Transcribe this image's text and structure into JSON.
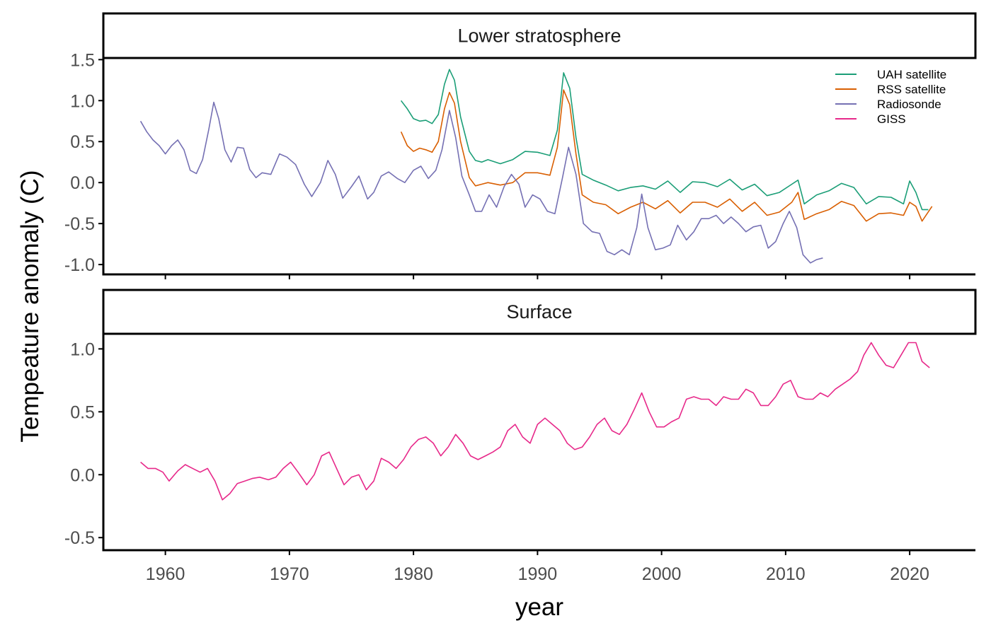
{
  "chart_data": {
    "type": "line",
    "xlabel": "year",
    "ylabel": "Tempeature anomaly (C)",
    "x_ticks": [
      1960,
      1970,
      1980,
      1990,
      2000,
      2010,
      2020
    ],
    "xlim": [
      1955,
      2025.3
    ],
    "legend_position": "top-right",
    "colors": {
      "UAH satellite": "#1b9e77",
      "RSS satellite": "#d95f02",
      "Radiosonde": "#7570b3",
      "GISS": "#e7298a"
    },
    "panels": [
      {
        "strip_label": "Lower stratosphere",
        "ylim": [
          -1.12,
          1.52
        ],
        "y_ticks": [
          1.5,
          1.0,
          0.5,
          0.0,
          -0.5,
          -1.0
        ],
        "y_tick_labels": [
          "1.5",
          "1.0",
          "0.5",
          "0.0",
          "-0.5",
          "-1.0"
        ],
        "legend": [
          "UAH satellite",
          "RSS satellite",
          "Radiosonde",
          "GISS"
        ],
        "series": [
          {
            "name": "UAH satellite",
            "x": [
              1979.0,
              1979.5,
              1980.0,
              1980.5,
              1981.0,
              1981.5,
              1982.0,
              1982.5,
              1982.9,
              1983.3,
              1983.8,
              1984.5,
              1985.0,
              1985.5,
              1986.0,
              1987.0,
              1988.0,
              1989.0,
              1990.0,
              1991.0,
              1991.6,
              1992.1,
              1992.6,
              1993.1,
              1993.6,
              1994.5,
              1995.5,
              1996.5,
              1997.5,
              1998.5,
              1999.5,
              2000.5,
              2001.5,
              2002.5,
              2003.5,
              2004.5,
              2005.5,
              2006.5,
              2007.5,
              2008.5,
              2009.5,
              2010.5,
              2011.0,
              2011.5,
              2012.5,
              2013.5,
              2014.5,
              2015.5,
              2016.5,
              2017.5,
              2018.5,
              2019.5,
              2020.0,
              2020.5,
              2021.0,
              2021.5
            ],
            "y": [
              1.0,
              0.9,
              0.78,
              0.75,
              0.76,
              0.72,
              0.83,
              1.2,
              1.38,
              1.25,
              0.8,
              0.38,
              0.27,
              0.25,
              0.28,
              0.23,
              0.28,
              0.38,
              0.37,
              0.33,
              0.64,
              1.34,
              1.15,
              0.55,
              0.1,
              0.03,
              -0.03,
              -0.1,
              -0.06,
              -0.04,
              -0.08,
              0.02,
              -0.12,
              0.01,
              0.0,
              -0.05,
              0.04,
              -0.09,
              -0.02,
              -0.16,
              -0.12,
              -0.02,
              0.03,
              -0.26,
              -0.15,
              -0.1,
              -0.01,
              -0.06,
              -0.26,
              -0.17,
              -0.18,
              -0.26,
              0.02,
              -0.12,
              -0.33,
              -0.33
            ]
          },
          {
            "name": "RSS satellite",
            "x": [
              1979.0,
              1979.5,
              1980.0,
              1980.5,
              1981.0,
              1981.5,
              1982.0,
              1982.5,
              1982.9,
              1983.3,
              1983.8,
              1984.5,
              1985.0,
              1985.5,
              1986.0,
              1987.0,
              1988.0,
              1989.0,
              1990.0,
              1991.0,
              1991.6,
              1992.1,
              1992.6,
              1993.1,
              1993.6,
              1994.5,
              1995.5,
              1996.5,
              1997.5,
              1998.5,
              1999.5,
              2000.5,
              2001.5,
              2002.5,
              2003.5,
              2004.5,
              2005.5,
              2006.5,
              2007.5,
              2008.5,
              2009.5,
              2010.5,
              2011.0,
              2011.5,
              2012.5,
              2013.5,
              2014.5,
              2015.5,
              2016.5,
              2017.5,
              2018.5,
              2019.5,
              2020.0,
              2020.5,
              2021.0,
              2021.8
            ],
            "y": [
              0.62,
              0.45,
              0.38,
              0.42,
              0.4,
              0.37,
              0.5,
              0.9,
              1.1,
              0.97,
              0.5,
              0.06,
              -0.04,
              -0.02,
              0.0,
              -0.03,
              0.0,
              0.12,
              0.12,
              0.09,
              0.43,
              1.13,
              0.95,
              0.35,
              -0.15,
              -0.24,
              -0.27,
              -0.38,
              -0.3,
              -0.24,
              -0.32,
              -0.22,
              -0.37,
              -0.24,
              -0.24,
              -0.3,
              -0.2,
              -0.35,
              -0.24,
              -0.4,
              -0.36,
              -0.24,
              -0.12,
              -0.45,
              -0.38,
              -0.33,
              -0.23,
              -0.28,
              -0.47,
              -0.38,
              -0.37,
              -0.4,
              -0.24,
              -0.29,
              -0.47,
              -0.29
            ]
          },
          {
            "name": "Radiosonde",
            "x": [
              1958.0,
              1958.5,
              1959.0,
              1959.5,
              1960.0,
              1960.5,
              1961.0,
              1961.5,
              1962.0,
              1962.5,
              1963.0,
              1963.5,
              1963.9,
              1964.3,
              1964.8,
              1965.3,
              1965.8,
              1966.3,
              1966.8,
              1967.3,
              1967.8,
              1968.5,
              1969.2,
              1969.8,
              1970.5,
              1971.2,
              1971.8,
              1972.5,
              1973.1,
              1973.7,
              1974.3,
              1975.0,
              1975.6,
              1976.3,
              1976.8,
              1977.4,
              1978.0,
              1978.7,
              1979.3,
              1980.0,
              1980.6,
              1981.2,
              1981.8,
              1982.3,
              1982.9,
              1983.4,
              1983.9,
              1984.5,
              1985.0,
              1985.5,
              1986.1,
              1986.7,
              1987.3,
              1987.9,
              1988.5,
              1989.0,
              1989.6,
              1990.2,
              1990.8,
              1991.4,
              1992.0,
              1992.5,
              1993.1,
              1993.7,
              1994.4,
              1995.0,
              1995.6,
              1996.2,
              1996.8,
              1997.4,
              1998.0,
              1998.4,
              1998.9,
              1999.5,
              2000.1,
              2000.7,
              2001.3,
              2002.0,
              2002.6,
              2003.2,
              2003.8,
              2004.4,
              2005.0,
              2005.6,
              2006.2,
              2006.8,
              2007.4,
              2008.0,
              2008.6,
              2009.2,
              2009.8,
              2010.3,
              2010.9,
              2011.4,
              2012.0,
              2012.5,
              2013.0
            ],
            "y": [
              0.75,
              0.62,
              0.52,
              0.45,
              0.35,
              0.45,
              0.52,
              0.4,
              0.15,
              0.11,
              0.28,
              0.65,
              0.98,
              0.78,
              0.4,
              0.25,
              0.43,
              0.42,
              0.16,
              0.06,
              0.12,
              0.1,
              0.35,
              0.31,
              0.22,
              -0.02,
              -0.17,
              0.0,
              0.27,
              0.1,
              -0.19,
              -0.05,
              0.08,
              -0.2,
              -0.12,
              0.08,
              0.13,
              0.05,
              0.0,
              0.15,
              0.2,
              0.05,
              0.15,
              0.4,
              0.88,
              0.55,
              0.08,
              -0.15,
              -0.35,
              -0.35,
              -0.15,
              -0.3,
              -0.05,
              0.1,
              -0.02,
              -0.3,
              -0.15,
              -0.2,
              -0.35,
              -0.38,
              0.05,
              0.43,
              0.1,
              -0.5,
              -0.6,
              -0.62,
              -0.84,
              -0.88,
              -0.82,
              -0.88,
              -0.55,
              -0.14,
              -0.55,
              -0.82,
              -0.8,
              -0.76,
              -0.52,
              -0.7,
              -0.6,
              -0.44,
              -0.44,
              -0.4,
              -0.5,
              -0.42,
              -0.5,
              -0.6,
              -0.54,
              -0.52,
              -0.8,
              -0.72,
              -0.5,
              -0.35,
              -0.55,
              -0.88,
              -0.98,
              -0.94,
              -0.92
            ]
          }
        ]
      },
      {
        "strip_label": "Surface",
        "ylim": [
          -0.6,
          1.12
        ],
        "y_ticks": [
          1.0,
          0.5,
          0.0,
          -0.5
        ],
        "y_tick_labels": [
          "1.0",
          "0.5",
          "0.0",
          "-0.5"
        ],
        "series": [
          {
            "name": "GISS",
            "x": [
              1958.0,
              1958.6,
              1959.2,
              1959.8,
              1960.3,
              1961.0,
              1961.6,
              1962.2,
              1962.8,
              1963.4,
              1964.0,
              1964.6,
              1965.2,
              1965.8,
              1966.4,
              1967.0,
              1967.6,
              1968.3,
              1968.9,
              1969.5,
              1970.1,
              1970.7,
              1971.4,
              1972.0,
              1972.6,
              1973.2,
              1973.8,
              1974.4,
              1975.0,
              1975.6,
              1976.2,
              1976.8,
              1977.4,
              1978.0,
              1978.6,
              1979.2,
              1979.8,
              1980.4,
              1981.0,
              1981.6,
              1982.2,
              1982.8,
              1983.4,
              1984.0,
              1984.6,
              1985.2,
              1985.8,
              1986.4,
              1987.0,
              1987.6,
              1988.2,
              1988.8,
              1989.4,
              1990.0,
              1990.6,
              1991.2,
              1991.8,
              1992.4,
              1993.0,
              1993.6,
              1994.2,
              1994.8,
              1995.4,
              1996.0,
              1996.6,
              1997.2,
              1997.8,
              1998.4,
              1999.0,
              1999.6,
              2000.2,
              2000.8,
              2001.4,
              2002.0,
              2002.6,
              2003.2,
              2003.8,
              2004.4,
              2005.0,
              2005.6,
              2006.2,
              2006.8,
              2007.4,
              2008.0,
              2008.6,
              2009.2,
              2009.8,
              2010.4,
              2011.0,
              2011.6,
              2012.2,
              2012.8,
              2013.4,
              2014.0,
              2014.6,
              2015.2,
              2015.8,
              2016.3,
              2016.9,
              2017.5,
              2018.1,
              2018.7,
              2019.3,
              2019.9,
              2020.5,
              2021.0,
              2021.6
            ],
            "y": [
              0.1,
              0.05,
              0.05,
              0.02,
              -0.05,
              0.03,
              0.08,
              0.05,
              0.02,
              0.05,
              -0.05,
              -0.2,
              -0.15,
              -0.07,
              -0.05,
              -0.03,
              -0.02,
              -0.04,
              -0.02,
              0.05,
              0.1,
              0.02,
              -0.08,
              0.0,
              0.15,
              0.18,
              0.05,
              -0.08,
              -0.02,
              0.0,
              -0.12,
              -0.05,
              0.13,
              0.1,
              0.05,
              0.12,
              0.22,
              0.28,
              0.3,
              0.25,
              0.15,
              0.22,
              0.32,
              0.25,
              0.15,
              0.12,
              0.15,
              0.18,
              0.22,
              0.35,
              0.4,
              0.3,
              0.25,
              0.4,
              0.45,
              0.4,
              0.35,
              0.25,
              0.2,
              0.22,
              0.3,
              0.4,
              0.45,
              0.35,
              0.32,
              0.4,
              0.52,
              0.65,
              0.5,
              0.38,
              0.38,
              0.42,
              0.45,
              0.6,
              0.62,
              0.6,
              0.6,
              0.55,
              0.62,
              0.6,
              0.6,
              0.68,
              0.65,
              0.55,
              0.55,
              0.62,
              0.72,
              0.75,
              0.62,
              0.6,
              0.6,
              0.65,
              0.62,
              0.68,
              0.72,
              0.76,
              0.82,
              0.95,
              1.05,
              0.95,
              0.87,
              0.85,
              0.95,
              1.05,
              1.05,
              0.9,
              0.85
            ]
          }
        ]
      }
    ]
  }
}
